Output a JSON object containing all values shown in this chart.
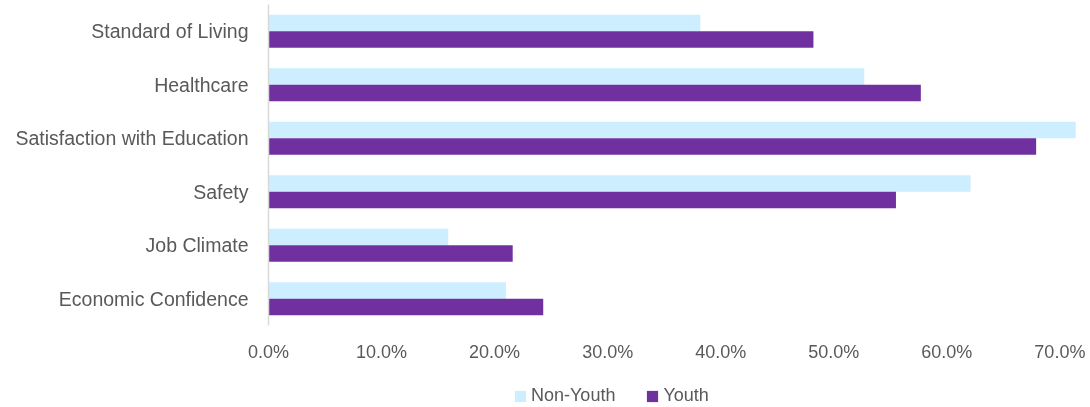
{
  "chart_data": {
    "type": "bar",
    "orientation": "horizontal",
    "categories": [
      "Standard of Living",
      "Healthcare",
      "Satisfaction with Education",
      "Safety",
      "Job Climate",
      "Economic Confidence"
    ],
    "series": [
      {
        "name": "Non-Youth",
        "color": "#cceeff",
        "values": [
          38.2,
          52.7,
          71.4,
          62.1,
          15.9,
          21.0
        ]
      },
      {
        "name": "Youth",
        "color": "#7030a0",
        "values": [
          48.2,
          57.7,
          67.9,
          55.5,
          21.6,
          24.3
        ]
      }
    ],
    "xlim": [
      0,
      72
    ],
    "xticks": [
      {
        "value": 0,
        "label": "0.0%"
      },
      {
        "value": 10,
        "label": "10.0%"
      },
      {
        "value": 20,
        "label": "20.0%"
      },
      {
        "value": 30,
        "label": "30.0%"
      },
      {
        "value": 40,
        "label": "40.0%"
      },
      {
        "value": 50,
        "label": "50.0%"
      },
      {
        "value": 60,
        "label": "60.0%"
      },
      {
        "value": 70,
        "label": "70.0%"
      }
    ],
    "grid": false,
    "legend": "bottom"
  }
}
